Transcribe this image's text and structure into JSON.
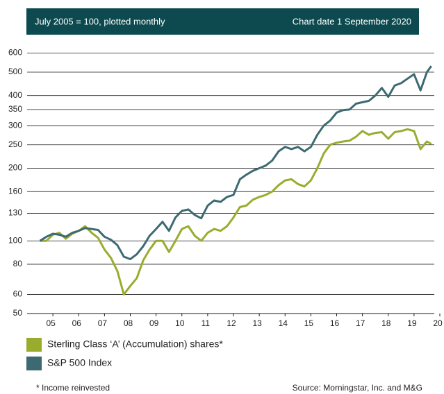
{
  "chart_data": {
    "type": "line",
    "subtitle": "July 2005 = 100, plotted monthly",
    "annotation": "Chart date 1 September 2020",
    "footnote": "* Income reinvested",
    "source": "Source: Morningstar, Inc. and M&G",
    "log_scale": true,
    "grid": true,
    "xlim": [
      2005,
      2021
    ],
    "xticks": [
      {
        "value": 2006,
        "label": "05"
      },
      {
        "value": 2007,
        "label": "06"
      },
      {
        "value": 2008,
        "label": "07"
      },
      {
        "value": 2009,
        "label": "08"
      },
      {
        "value": 2010,
        "label": "09"
      },
      {
        "value": 2011,
        "label": "10"
      },
      {
        "value": 2012,
        "label": "11"
      },
      {
        "value": 2013,
        "label": "12"
      },
      {
        "value": 2014,
        "label": "13"
      },
      {
        "value": 2015,
        "label": "14"
      },
      {
        "value": 2016,
        "label": "15"
      },
      {
        "value": 2017,
        "label": "16"
      },
      {
        "value": 2018,
        "label": "17"
      },
      {
        "value": 2019,
        "label": "18"
      },
      {
        "value": 2020,
        "label": "19"
      },
      {
        "value": 2021,
        "label": "20"
      }
    ],
    "ylim": [
      50,
      660
    ],
    "yticks": [
      50,
      60,
      80,
      100,
      130,
      160,
      200,
      250,
      300,
      350,
      400,
      500,
      600
    ],
    "x": [
      2005.5,
      2005.75,
      2006.0,
      2006.25,
      2006.5,
      2006.75,
      2007.0,
      2007.25,
      2007.5,
      2007.75,
      2008.0,
      2008.25,
      2008.5,
      2008.75,
      2009.0,
      2009.25,
      2009.5,
      2009.75,
      2010.0,
      2010.25,
      2010.5,
      2010.75,
      2011.0,
      2011.25,
      2011.5,
      2011.75,
      2012.0,
      2012.25,
      2012.5,
      2012.75,
      2013.0,
      2013.25,
      2013.5,
      2013.75,
      2014.0,
      2014.25,
      2014.5,
      2014.75,
      2015.0,
      2015.25,
      2015.5,
      2015.75,
      2016.0,
      2016.25,
      2016.5,
      2016.75,
      2017.0,
      2017.25,
      2017.5,
      2017.75,
      2018.0,
      2018.25,
      2018.5,
      2018.75,
      2019.0,
      2019.25,
      2019.5,
      2019.75,
      2020.0,
      2020.25,
      2020.5,
      2020.67
    ],
    "series": [
      {
        "name": "Sterling Class ‘A’ (Accumulation) shares*",
        "color": "#9aac2e",
        "values": [
          100,
          100,
          106,
          108,
          102,
          107,
          110,
          115,
          108,
          103,
          92,
          85,
          75,
          60,
          65,
          70,
          83,
          92,
          100,
          100,
          90,
          100,
          112,
          115,
          105,
          100,
          108,
          112,
          110,
          115,
          125,
          138,
          140,
          148,
          152,
          155,
          160,
          170,
          178,
          180,
          172,
          168,
          178,
          200,
          230,
          250,
          255,
          258,
          260,
          270,
          285,
          275,
          280,
          282,
          265,
          282,
          285,
          290,
          285,
          240,
          258,
          252
        ]
      },
      {
        "name": "S&P 500 Index",
        "color": "#3d6a72",
        "values": [
          100,
          104,
          107,
          106,
          104,
          108,
          110,
          113,
          112,
          111,
          104,
          101,
          96,
          86,
          84,
          88,
          95,
          105,
          112,
          120,
          110,
          125,
          133,
          135,
          128,
          124,
          140,
          147,
          145,
          152,
          155,
          180,
          188,
          195,
          200,
          205,
          215,
          235,
          245,
          240,
          245,
          235,
          245,
          275,
          300,
          315,
          340,
          348,
          350,
          370,
          375,
          380,
          400,
          430,
          395,
          440,
          450,
          470,
          490,
          420,
          500,
          530
        ]
      }
    ]
  }
}
